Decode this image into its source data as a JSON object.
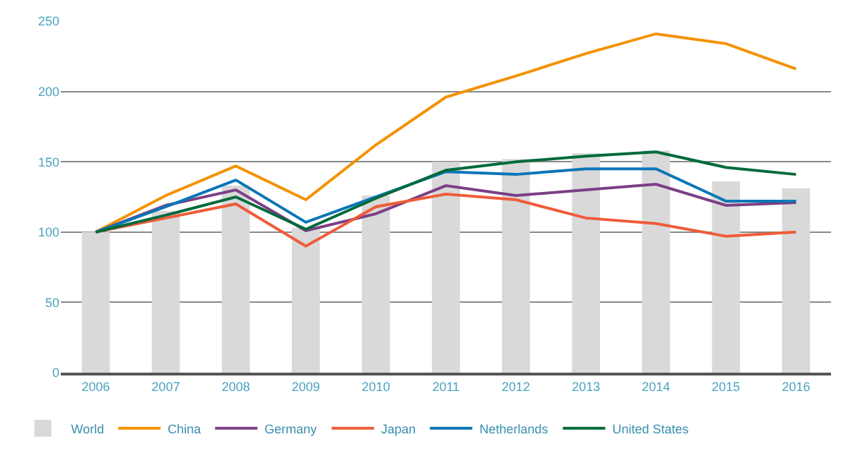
{
  "chart_data": {
    "type": "line",
    "categories": [
      "2006",
      "2007",
      "2008",
      "2009",
      "2010",
      "2011",
      "2012",
      "2013",
      "2014",
      "2015",
      "2016"
    ],
    "series": [
      {
        "name": "China",
        "color": "#f39200",
        "values": [
          100,
          126,
          147,
          123,
          162,
          196,
          211,
          227,
          241,
          234,
          216
        ]
      },
      {
        "name": "Germany",
        "color": "#7b3f85",
        "values": [
          100,
          119,
          130,
          101,
          113,
          133,
          126,
          130,
          134,
          119,
          121
        ]
      },
      {
        "name": "Japan",
        "color": "#ef5b3a",
        "values": [
          100,
          110,
          120,
          90,
          118,
          127,
          123,
          110,
          106,
          97,
          100
        ]
      },
      {
        "name": "Netherlands",
        "color": "#0a76b7",
        "values": [
          100,
          118,
          137,
          107,
          125,
          143,
          141,
          145,
          145,
          122,
          122
        ]
      },
      {
        "name": "United States",
        "color": "#006a3c",
        "values": [
          100,
          112,
          125,
          102,
          124,
          144,
          150,
          154,
          157,
          146,
          141
        ]
      },
      {
        "name": "World",
        "color": "#d9d9d9",
        "type": "bar",
        "values": [
          100,
          115,
          133,
          103,
          126,
          150,
          152,
          156,
          158,
          136,
          131
        ]
      }
    ],
    "ylim": [
      0,
      250
    ],
    "yticks": [
      0,
      50,
      100,
      150,
      200,
      250
    ],
    "grid": "y",
    "legend": "bottom",
    "marker": "none",
    "line_style": "solid"
  }
}
